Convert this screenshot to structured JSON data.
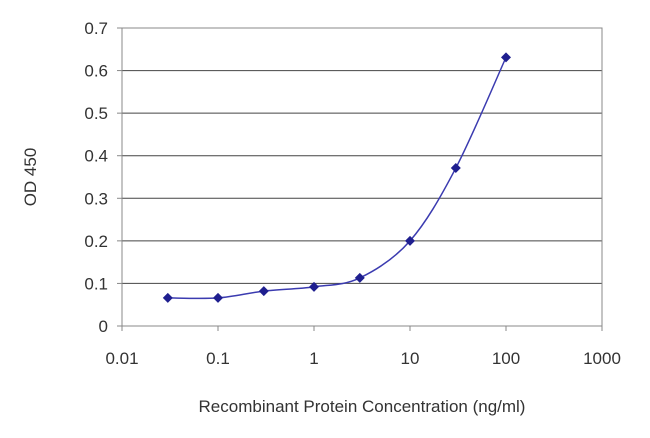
{
  "chart_data": {
    "type": "line",
    "title": "",
    "xlabel": "Recombinant Protein Concentration (ng/ml)",
    "ylabel": "OD 450",
    "xscale": "log",
    "xlim": [
      0.01,
      1000
    ],
    "ylim": [
      0,
      0.7
    ],
    "x_ticks": [
      "0.01",
      "0.1",
      "1",
      "10",
      "100",
      "1000"
    ],
    "x_tick_values": [
      0.01,
      0.1,
      1,
      10,
      100,
      1000
    ],
    "y_ticks": [
      "0",
      "0.1",
      "0.2",
      "0.3",
      "0.4",
      "0.5",
      "0.6",
      "0.7"
    ],
    "y_tick_values": [
      0,
      0.1,
      0.2,
      0.3,
      0.4,
      0.5,
      0.6,
      0.7
    ],
    "grid": "horizontal",
    "series": [
      {
        "name": "OD 450",
        "color": "#1f1f8f",
        "x": [
          0.03,
          0.1,
          0.3,
          1,
          3,
          10,
          30,
          100
        ],
        "y": [
          0.066,
          0.066,
          0.082,
          0.092,
          0.113,
          0.2,
          0.371,
          0.631
        ]
      }
    ]
  }
}
